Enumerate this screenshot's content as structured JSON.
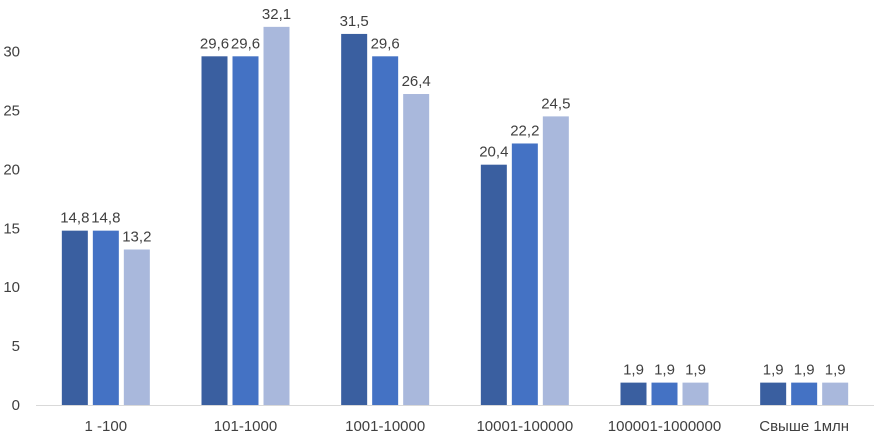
{
  "chart_data": {
    "type": "bar",
    "title": "",
    "xlabel": "",
    "ylabel": "",
    "ylim": [
      0,
      33
    ],
    "yticks": [
      0,
      5,
      10,
      15,
      20,
      25,
      30
    ],
    "grid": false,
    "legend": "none",
    "categories": [
      "1 -100",
      "101-1000",
      "1001-10000",
      "10001-100000",
      "100001-1000000",
      "Свыше 1млн"
    ],
    "series": [
      {
        "values": [
          14.8,
          29.6,
          31.5,
          20.4,
          1.9,
          1.9
        ],
        "labels": [
          "14,8",
          "29,6",
          "31,5",
          "20,4",
          "1,9",
          "1,9"
        ],
        "color": "#3A5FA0"
      },
      {
        "values": [
          14.8,
          29.6,
          29.6,
          22.2,
          1.9,
          1.9
        ],
        "labels": [
          "14,8",
          "29,6",
          "29,6",
          "22,2",
          "1,9",
          "1,9"
        ],
        "color": "#4472C4"
      },
      {
        "values": [
          13.2,
          32.1,
          26.4,
          24.5,
          1.9,
          1.9
        ],
        "labels": [
          "13,2",
          "32,1",
          "26,4",
          "24,5",
          "1,9",
          "1,9"
        ],
        "color": "#A9B8DC"
      }
    ]
  }
}
